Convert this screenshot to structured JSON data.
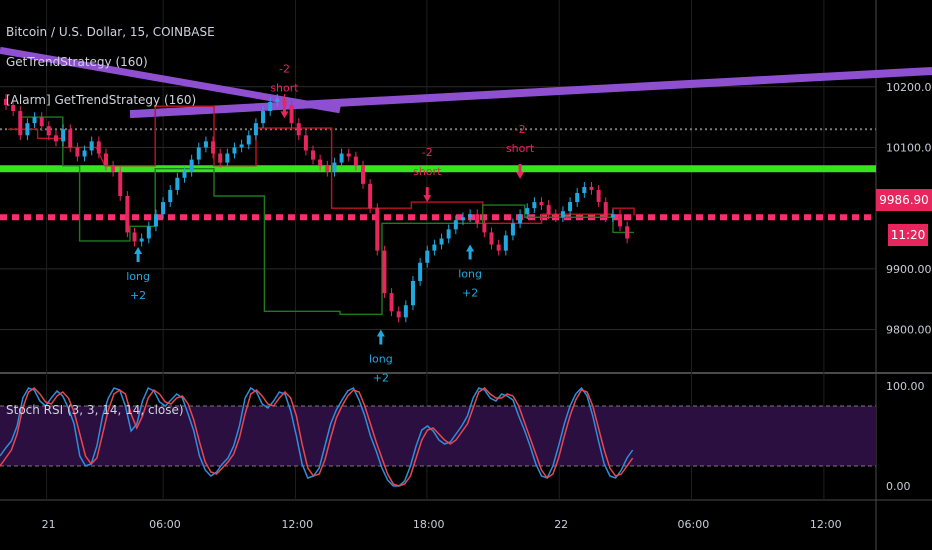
{
  "legend": {
    "symbol": "Bitcoin / U.S. Dollar, 15, COINBASE",
    "strategy": "GetTrendStrategy (160)",
    "alarm": "[Alarm] GetTrendStrategy (160)",
    "stoch": "Stoch RSI (3, 3, 14, 14, close)"
  },
  "price_tag": "9986.90",
  "countdown": "11:20",
  "colors": {
    "up": "#1fa9e0",
    "down": "#e8265e",
    "support_line": "#37e21f",
    "resist_dotted": "#ff2d6f",
    "trend_line": "#8e4fd0",
    "step_green": "#1e7a1e",
    "step_red": "#c0141e",
    "stoch_k": "#2a8fdc",
    "stoch_d": "#e8474f",
    "stoch_band": "#2b0f40"
  },
  "chart_data": [
    {
      "type": "candlestick",
      "title": "Bitcoin / U.S. Dollar, 15, COINBASE",
      "x_ticks": [
        "21",
        "06:00",
        "12:00",
        "18:00",
        "22",
        "06:00",
        "12:00"
      ],
      "y_ticks": [
        10200.0,
        10100.0,
        9900.0,
        9800.0
      ],
      "ylim": [
        9730,
        10310
      ],
      "last_price": 9986.9,
      "levels": {
        "support": 10065,
        "resistance_dotted": 9985,
        "grey_dotted": 10130
      },
      "trend_line": [
        [
          0,
          10260
        ],
        [
          80,
          10162
        ]
      ],
      "trend_line2": [
        [
          20,
          10155
        ],
        [
          100,
          10226
        ]
      ],
      "step_upper": [
        [
          1,
          10130
        ],
        [
          8,
          10130
        ],
        [
          8,
          10115
        ],
        [
          14,
          10115
        ],
        [
          14,
          10100
        ],
        [
          22,
          10100
        ],
        [
          24,
          10070
        ],
        [
          36,
          10070
        ],
        [
          36,
          10168
        ],
        [
          50,
          10168
        ],
        [
          50,
          10070
        ],
        [
          60,
          10070
        ],
        [
          60,
          10132
        ],
        [
          78,
          10132
        ],
        [
          78,
          10000
        ],
        [
          97,
          10000
        ],
        [
          97,
          10010
        ],
        [
          114,
          10010
        ],
        [
          114,
          9975
        ],
        [
          128,
          9975
        ],
        [
          128,
          9990
        ],
        [
          145,
          9990
        ],
        [
          145,
          10000
        ],
        [
          150,
          10000
        ],
        [
          150,
          9988
        ]
      ],
      "step_lower": [
        [
          4,
          10150
        ],
        [
          14,
          10150
        ],
        [
          14,
          10070
        ],
        [
          18,
          10070
        ],
        [
          18,
          9946
        ],
        [
          30,
          9946
        ],
        [
          30,
          9970
        ],
        [
          36,
          9970
        ],
        [
          36,
          10065
        ],
        [
          50,
          10065
        ],
        [
          50,
          10020
        ],
        [
          62,
          10020
        ],
        [
          62,
          9830
        ],
        [
          80,
          9830
        ],
        [
          80,
          9825
        ],
        [
          90,
          9825
        ],
        [
          90,
          9975
        ],
        [
          114,
          9975
        ],
        [
          114,
          10005
        ],
        [
          124,
          10005
        ],
        [
          124,
          9985
        ],
        [
          145,
          9985
        ],
        [
          145,
          9960
        ],
        [
          150,
          9960
        ]
      ],
      "signals": [
        {
          "type": "long",
          "label": "long",
          "qty": "+2",
          "x_index": 18.5,
          "price": 9936
        },
        {
          "type": "short",
          "label": "short",
          "qty": "-2",
          "x_index": 39,
          "price": 10148
        },
        {
          "type": "long",
          "label": "long",
          "qty": "+2",
          "x_index": 52.5,
          "price": 9800
        },
        {
          "type": "short",
          "label": "short",
          "qty": "-2",
          "x_index": 59,
          "price": 10010
        },
        {
          "type": "long",
          "label": "long",
          "qty": "+2",
          "x_index": 65,
          "price": 9940
        },
        {
          "type": "short",
          "label": "short",
          "qty": "-2",
          "x_index": 72,
          "price": 10048
        }
      ]
    },
    {
      "type": "line",
      "title": "Stoch RSI (3, 3, 14, 14, close)",
      "y_ticks": [
        100.0,
        0.0
      ],
      "ylim": [
        -10,
        110
      ],
      "band": [
        20,
        80
      ],
      "series": [
        {
          "values": [
            30,
            38,
            45,
            60,
            88,
            98,
            96,
            85,
            80,
            88,
            95,
            90,
            78,
            62,
            30,
            20,
            22,
            40,
            70,
            88,
            98,
            96,
            80,
            55,
            62,
            85,
            98,
            95,
            84,
            80,
            86,
            92,
            88,
            72,
            55,
            30,
            16,
            10,
            14,
            22,
            28,
            40,
            60,
            88,
            98,
            94,
            82,
            78,
            85,
            94,
            92,
            75,
            50,
            22,
            8,
            10,
            18,
            40,
            62,
            76,
            86,
            95,
            98,
            86,
            70,
            50,
            35,
            18,
            6,
            0,
            0,
            5,
            20,
            40,
            56,
            60,
            55,
            46,
            42,
            44,
            52,
            60,
            70,
            88,
            98,
            96,
            88,
            85,
            92,
            90,
            86,
            70,
            56,
            40,
            22,
            10,
            8,
            20,
            40,
            62,
            80,
            92,
            98,
            90,
            70,
            45,
            22,
            10,
            8,
            16,
            28,
            36
          ]
        },
        {
          "values": [
            20,
            28,
            36,
            52,
            78,
            94,
            98,
            92,
            84,
            82,
            90,
            94,
            88,
            74,
            52,
            30,
            22,
            28,
            52,
            76,
            92,
            96,
            92,
            72,
            58,
            70,
            88,
            96,
            92,
            84,
            82,
            88,
            90,
            82,
            66,
            44,
            24,
            14,
            12,
            18,
            24,
            32,
            48,
            72,
            92,
            96,
            90,
            82,
            80,
            88,
            94,
            88,
            70,
            42,
            18,
            10,
            12,
            26,
            48,
            68,
            80,
            90,
            96,
            94,
            80,
            62,
            44,
            28,
            12,
            2,
            0,
            2,
            10,
            28,
            46,
            56,
            58,
            52,
            46,
            42,
            46,
            54,
            62,
            78,
            94,
            98,
            92,
            88,
            88,
            92,
            90,
            80,
            64,
            48,
            32,
            16,
            8,
            12,
            28,
            50,
            70,
            86,
            96,
            94,
            80,
            58,
            36,
            18,
            10,
            12,
            20,
            28
          ]
        }
      ]
    }
  ]
}
